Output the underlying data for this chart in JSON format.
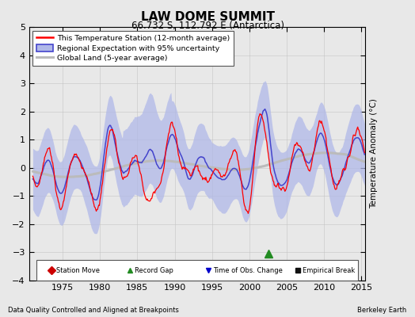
{
  "title": "LAW DOME SUMMIT",
  "subtitle": "66.732 S, 112.792 E (Antarctica)",
  "ylabel": "Temperature Anomaly (°C)",
  "xlabel_left": "Data Quality Controlled and Aligned at Breakpoints",
  "xlabel_right": "Berkeley Earth",
  "ylim": [
    -4,
    5
  ],
  "xlim": [
    1970.5,
    2015.5
  ],
  "xticks": [
    1975,
    1980,
    1985,
    1990,
    1995,
    2000,
    2005,
    2010,
    2015
  ],
  "yticks": [
    -4,
    -3,
    -2,
    -1,
    0,
    1,
    2,
    3,
    4,
    5
  ],
  "station_color": "#FF0000",
  "regional_color": "#4444CC",
  "regional_fill_color": "#B0B8E8",
  "global_color": "#BBBBBB",
  "background_color": "#E8E8E8",
  "legend_labels": [
    "This Temperature Station (12-month average)",
    "Regional Expectation with 95% uncertainty",
    "Global Land (5-year average)"
  ],
  "marker_legend": [
    {
      "label": "Station Move",
      "color": "#CC0000",
      "marker": "D"
    },
    {
      "label": "Record Gap",
      "color": "#228B22",
      "marker": "^"
    },
    {
      "label": "Time of Obs. Change",
      "color": "#0000CC",
      "marker": "v"
    },
    {
      "label": "Empirical Break",
      "color": "#111111",
      "marker": "s"
    }
  ],
  "green_marker_x": 2002.5,
  "green_marker_y": -3.05
}
